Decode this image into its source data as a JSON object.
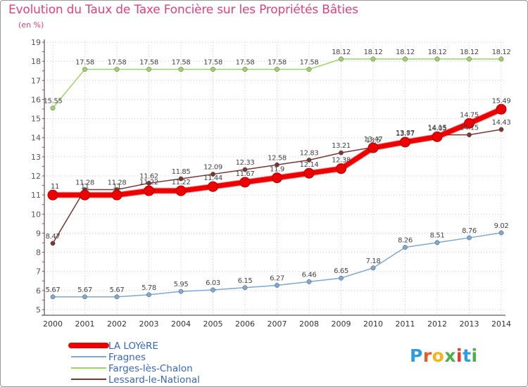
{
  "title": "Evolution du Taux de Taxe Foncière sur les Propriétés Bâties",
  "subtitle": "(en %)",
  "logo": {
    "text": "Proxiti",
    "colors": [
      "#2f9be0",
      "#e85a2a",
      "#f4b41a",
      "#4ab04a",
      "#e8342f",
      "#2f9be0",
      "#4ab04a"
    ]
  },
  "chart_data": {
    "type": "line",
    "title": "Evolution du Taux de Taxe Foncière sur les Propriétés Bâties",
    "ylabel": "(en %)",
    "xlabel": "",
    "categories": [
      "2000",
      "2001",
      "2002",
      "2003",
      "2004",
      "2005",
      "2006",
      "2007",
      "2008",
      "2009",
      "2010",
      "2011",
      "2012",
      "2013",
      "2014"
    ],
    "ylim": [
      5,
      19
    ],
    "yticks": [
      5,
      6,
      7,
      8,
      9,
      10,
      11,
      12,
      13,
      14,
      15,
      16,
      17,
      18,
      19
    ],
    "grid": true,
    "legend": "bottom-left",
    "series": [
      {
        "name": "LA LOYèRE",
        "color": "#ee0000",
        "width": 7,
        "marker": 7,
        "values": [
          11,
          11,
          11,
          11.22,
          11.22,
          11.44,
          11.67,
          11.9,
          12.14,
          12.38,
          13.47,
          13.77,
          14.05,
          14.75,
          15.49
        ],
        "labels": [
          "11",
          "11",
          "11",
          "11.22",
          "11.22",
          "11.44",
          "11.67",
          "11.9",
          "12.14",
          "12.38",
          "13.47",
          "13.77",
          "14.05",
          "14.75",
          "15.49"
        ]
      },
      {
        "name": "Fragnes",
        "color": "#7fa8d0",
        "width": 1.5,
        "marker": 3.2,
        "values": [
          5.67,
          5.67,
          5.67,
          5.78,
          5.95,
          6.03,
          6.15,
          6.27,
          6.46,
          6.65,
          7.18,
          8.26,
          8.51,
          8.76,
          9.02
        ],
        "labels": [
          "5.67",
          "5.67",
          "5.67",
          "5.78",
          "5.95",
          "6.03",
          "6.15",
          "6.27",
          "6.46",
          "6.65",
          "7.18",
          "8.26",
          "8.51",
          "8.76",
          "9.02"
        ]
      },
      {
        "name": "Farges-lès-Chalon",
        "color": "#9ed36a",
        "width": 1.5,
        "marker": 3.2,
        "values": [
          15.55,
          17.58,
          17.58,
          17.58,
          17.58,
          17.58,
          17.58,
          17.58,
          17.58,
          18.12,
          18.12,
          18.12,
          18.12,
          18.12,
          18.12
        ],
        "labels": [
          "15.55",
          "17.58",
          "17.58",
          "17.58",
          "17.58",
          "17.58",
          "17.58",
          "17.58",
          "17.58",
          "18.12",
          "18.12",
          "18.12",
          "18.12",
          "18.12",
          "18.12"
        ]
      },
      {
        "name": "Lessard-le-National",
        "color": "#7a3535",
        "width": 1.5,
        "marker": 3.2,
        "values": [
          8.47,
          11.28,
          11.28,
          11.62,
          11.85,
          12.09,
          12.33,
          12.58,
          12.83,
          13.21,
          13.5,
          13.87,
          14.15,
          14.15,
          14.43
        ],
        "labels": [
          "8.47",
          "11.28",
          "11.28",
          "11.62",
          "11.85",
          "12.09",
          "12.33",
          "12.58",
          "12.83",
          "13.21",
          "13.5",
          "13.87",
          "14.15",
          "14.15",
          "14.43"
        ]
      }
    ]
  }
}
